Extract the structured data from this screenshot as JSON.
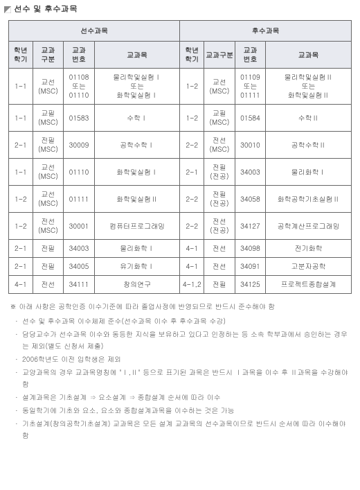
{
  "title": "선수 및 후수과목",
  "group_headers": [
    "선수과목",
    "후수과목"
  ],
  "col_headers": [
    "학년\n학기",
    "교과\n구분",
    "교과\n번호",
    "교과목",
    "학년\n학기",
    "교과구분",
    "교과\n번호",
    "교과목"
  ],
  "rows": [
    [
      "1-1",
      "교선\n(MSC)",
      "01108\n또는\n01110",
      "물리학및실험Ⅰ\n또는\n화학및실험Ⅰ",
      "1-2",
      "교선\n(MSC)",
      "01109\n또는\n01111",
      "물리학및실험Ⅱ\n또는\n화학및실험Ⅱ"
    ],
    [
      "1-1",
      "교필\n(MSC)",
      "01583",
      "수학Ⅰ",
      "1-2",
      "교필\n(MSC)",
      "01584",
      "수학Ⅱ"
    ],
    [
      "2-1",
      "전필\n(MSC)",
      "30009",
      "공학수학Ⅰ",
      "2-2",
      "전선\n(MSC)",
      "30010",
      "공학수학Ⅱ"
    ],
    [
      "1-1",
      "교선\n(MSC)",
      "01110",
      "화학및실험Ⅰ",
      "2-1",
      "전필\n(전공)",
      "34003",
      "물리화학Ⅰ"
    ],
    [
      "1-2",
      "교선\n(MSC)",
      "01111",
      "화학및실험Ⅱ",
      "2-2",
      "전필\n(전공)",
      "34058",
      "화학공학기초실험Ⅱ"
    ],
    [
      "1-2",
      "전선\n(MSC)",
      "30001",
      "컴퓨터프로그래밍",
      "2-2",
      "전선\n(전공)",
      "34127",
      "공학계산프로그래밍"
    ],
    [
      "2-1",
      "전필",
      "34003",
      "물리화학Ⅰ",
      "4-1",
      "전선",
      "34098",
      "전기화학"
    ],
    [
      "2-1",
      "전필",
      "34005",
      "유기화학Ⅰ",
      "4-1",
      "전선",
      "34091",
      "고분자공학"
    ],
    [
      "4-1",
      "전선",
      "34111",
      "창의연구",
      "4-1,2",
      "전필",
      "34125",
      "프로젝트종합설계"
    ]
  ],
  "notes_lead": "※ 아래 사항은 공학인증 이수기준에 따라 졸업사정에 반영되므로 반드시 준수해야 함",
  "notes": [
    "선수 및 후수과목 이수체제 준수(선수과목 이수 후 후수과목 수강)",
    "담당교수가 선수과목 이수와 동등한 지식을 보유하고 있다고 인정하는 등 소속 학부과에서 승인하는 경우는 제외(별도 신청서 제출)",
    "2006학년도 이전 입학생은 제외",
    "교양과목의 경우 교과목명칭에 \"Ⅰ,Ⅱ\" 등으로 표기된 과목은 반드시 Ⅰ과목을 이수 후 Ⅱ과목을 수강해야 함",
    "설계과목은 기초설계 ⇒ 요소설계 ⇒ 종합설계 순서에 따라 이수",
    "동일학기에 기초와 요소, 요소와 종합설계과목을 이수하는 것은 가능",
    "기초설계(창의공학기초설계) 교과목은 모든 설계 교과목의 선수과목이므로 반드시 순서에 따라 이수해야 함"
  ],
  "col_widths": [
    "7%",
    "9%",
    "9%",
    "25%",
    "7%",
    "9%",
    "9%",
    "25%"
  ]
}
